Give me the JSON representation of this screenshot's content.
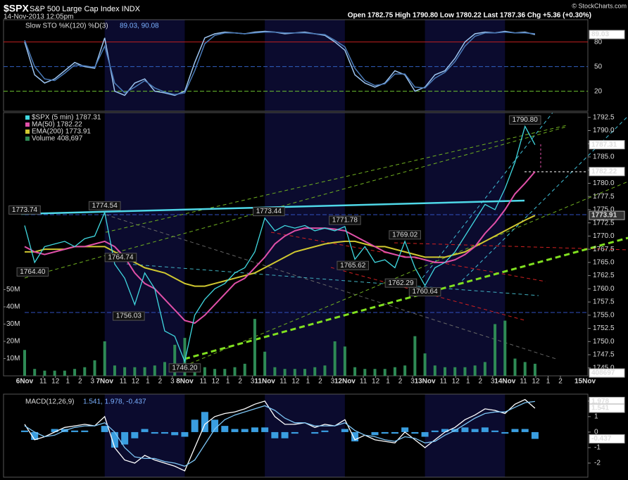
{
  "header": {
    "symbol": "$SPX",
    "name": "S&P 500 Large Cap Index INDX",
    "date": "14-Nov-2013 12:05pm",
    "quote": "Open 1782.75  High 1790.80  Low 1780.22  Last 1787.36  Chg +5.36 (+0.30%)",
    "credit": "© StockCharts.com"
  },
  "chart_data": {
    "type": "line",
    "x": [
      0,
      0.125,
      0.25,
      0.375,
      0.5,
      0.625,
      0.75,
      0.875,
      1,
      1.125,
      1.25,
      1.375,
      1.5,
      1.625,
      1.75,
      1.875,
      2,
      2.125,
      2.25,
      2.375,
      2.5,
      2.625,
      2.75,
      2.875,
      3,
      3.125,
      3.25,
      3.375,
      3.5,
      3.625,
      3.75,
      3.875,
      4,
      4.125,
      4.25,
      4.375,
      4.5,
      4.625,
      4.75,
      4.875,
      5,
      5.125,
      5.25,
      5.375,
      5.5,
      5.625,
      5.75,
      5.875,
      6,
      6.125,
      6.25,
      6.375
    ],
    "xlim": [
      0,
      7
    ],
    "days": [
      {
        "date": "6Nov",
        "hours": [
          11,
          12,
          1,
          2,
          3
        ]
      },
      {
        "date": "7Nov",
        "hours": [
          11,
          12,
          1,
          2,
          3
        ]
      },
      {
        "date": "8Nov",
        "hours": [
          11,
          12,
          1,
          2,
          3
        ]
      },
      {
        "date": "11Nov",
        "hours": [
          11,
          12,
          1,
          2,
          3
        ]
      },
      {
        "date": "12Nov",
        "hours": [
          11,
          12,
          1,
          2,
          3
        ]
      },
      {
        "date": "13Nov",
        "hours": [
          11,
          12,
          1,
          2,
          3
        ]
      },
      {
        "date": "14Nov",
        "hours": [
          11,
          12,
          1,
          2
        ]
      },
      {
        "date": "15Nov",
        "hours": []
      }
    ],
    "sto": {
      "legend": "Slow STO %K(120) %D(3)",
      "legend_values": "89.03, 90.08",
      "ylim": [
        -4.3,
        107.1
      ],
      "yticks": [
        20,
        50,
        80
      ],
      "line_colors": [
        "#6cc030",
        "#3060c0",
        "#c02020"
      ],
      "flag": 89.03,
      "series": [
        {
          "color": "#9cc4f0",
          "values": [
            80,
            40,
            30,
            35,
            45,
            55,
            50,
            48,
            85,
            20,
            15,
            30,
            35,
            20,
            18,
            15,
            20,
            55,
            85,
            90,
            92,
            91,
            90,
            92,
            93,
            92,
            90,
            91,
            92,
            90,
            88,
            80,
            70,
            40,
            30,
            25,
            30,
            45,
            40,
            20,
            25,
            40,
            45,
            60,
            80,
            90,
            92,
            91,
            93,
            91,
            92,
            89.03
          ]
        },
        {
          "color": "#4a7ab8",
          "values": [
            82,
            50,
            35,
            33,
            42,
            52,
            51,
            49,
            75,
            30,
            18,
            25,
            33,
            24,
            19,
            16,
            18,
            45,
            78,
            88,
            91,
            91,
            90,
            91,
            92,
            92,
            91,
            91,
            91,
            90,
            89,
            82,
            74,
            48,
            33,
            27,
            29,
            41,
            41,
            25,
            24,
            36,
            43,
            56,
            75,
            87,
            91,
            91,
            92,
            91,
            91,
            90.08
          ]
        }
      ]
    },
    "price": {
      "legend": [
        {
          "text": "$SPX (5 min) 1787.31",
          "color": "#40d8e0"
        },
        {
          "text": "MA(50) 1782.22",
          "color": "#e050a8"
        },
        {
          "text": "EMA(200) 1773.91",
          "color": "#d0c830"
        },
        {
          "text": "Volume 408,697",
          "color": "#2e8a55"
        }
      ],
      "ylim": [
        1743.5,
        1793.4
      ],
      "yticks": [
        {
          "value": 1745,
          "label": "1745.0"
        },
        {
          "value": 1747.5,
          "label": "1747.5"
        },
        {
          "value": 1750,
          "label": "1750.0"
        },
        {
          "value": 1752.5,
          "label": "1752.5"
        },
        {
          "value": 1755,
          "label": "1755.0"
        },
        {
          "value": 1757.5,
          "label": "1757.5"
        },
        {
          "value": 1760,
          "label": "1760.0"
        },
        {
          "value": 1762.5,
          "label": "1762.5"
        },
        {
          "value": 1765,
          "label": "1765.0"
        },
        {
          "value": 1767.5,
          "label": "1767.5"
        },
        {
          "value": 1770,
          "label": "1770.0"
        },
        {
          "value": 1772.5,
          "label": "1772.5"
        },
        {
          "value": 1775,
          "label": "1775.0"
        },
        {
          "value": 1777.5,
          "label": "1777.5"
        },
        {
          "value": 1780,
          "label": "1780.0"
        },
        {
          "value": 1782.5,
          "label": "1782.5"
        },
        {
          "value": 1785,
          "label": "1785.0"
        },
        {
          "value": 1787.5,
          "label": "1787.5"
        },
        {
          "value": 1790,
          "label": "1790.0"
        },
        {
          "value": 1792.5,
          "label": "1792.5"
        }
      ],
      "series": [
        {
          "color": "#40d8e0",
          "values": [
            1772,
            1765,
            1768,
            1768.5,
            1769,
            1768,
            1769.5,
            1770,
            1774.5,
            1764.7,
            1762,
            1757,
            1763,
            1760,
            1752,
            1751,
            1746.2,
            1755,
            1758,
            1760,
            1761,
            1763,
            1764,
            1767,
            1773.4,
            1771,
            1772,
            1771.5,
            1772,
            1771,
            1771.5,
            1771,
            1771.8,
            1765.6,
            1768,
            1765,
            1765.5,
            1764,
            1769,
            1764,
            1760.6,
            1764,
            1765,
            1767,
            1770,
            1773,
            1776,
            1775,
            1779,
            1784,
            1790.8,
            1787.3
          ]
        },
        {
          "color": "#e050a8",
          "values": [
            1768,
            1767,
            1766.5,
            1767,
            1767.5,
            1768,
            1768,
            1768.5,
            1769,
            1768,
            1766,
            1763,
            1761,
            1760,
            1758,
            1756,
            1754,
            1753.5,
            1755,
            1757,
            1759,
            1761,
            1762,
            1764,
            1766,
            1768.5,
            1770,
            1771,
            1771.5,
            1771.5,
            1771.5,
            1771.3,
            1771,
            1770,
            1769,
            1768,
            1767,
            1766.5,
            1766,
            1766,
            1765.5,
            1765,
            1765,
            1765.5,
            1766.5,
            1768,
            1770.5,
            1772.5,
            1775,
            1778,
            1780,
            1782.2
          ]
        },
        {
          "color": "#d0c830",
          "values": [
            1767,
            1767,
            1767.5,
            1767.5,
            1767.5,
            1768,
            1768,
            1768,
            1768,
            1767,
            1766,
            1765,
            1764,
            1763.5,
            1763,
            1762,
            1761,
            1760.5,
            1760.5,
            1761,
            1761.5,
            1762,
            1762.5,
            1763,
            1764,
            1765,
            1766,
            1767,
            1767.5,
            1768,
            1768.5,
            1768.8,
            1769,
            1769,
            1768.5,
            1768,
            1768,
            1767.5,
            1767,
            1766.5,
            1766,
            1766,
            1766,
            1766.5,
            1767,
            1768,
            1769,
            1770,
            1771,
            1772,
            1773,
            1773.9
          ]
        }
      ],
      "flags": [
        {
          "value": 1787.31,
          "bg": "#ffffff",
          "fg": "#000000"
        },
        {
          "value": 1782.22,
          "bg": "#ffffff",
          "fg": "#000000"
        },
        {
          "value": 1773.91,
          "bg": "#333333",
          "fg": "#f0f0a0"
        }
      ],
      "annotations": [
        {
          "x": 0,
          "value": 1773.74,
          "label": "1773.74",
          "side": "above"
        },
        {
          "x": 1,
          "value": 1774.54,
          "label": "1774.54",
          "side": "above"
        },
        {
          "x": 0.1,
          "value": 1764.4,
          "label": "1764.40",
          "side": "below"
        },
        {
          "x": 1.2,
          "value": 1764.74,
          "label": "1764.74",
          "side": "above"
        },
        {
          "x": 1.3,
          "value": 1756.03,
          "label": "1756.03",
          "side": "below"
        },
        {
          "x": 2,
          "value": 1746.2,
          "label": "1746.20",
          "side": "below"
        },
        {
          "x": 3.05,
          "value": 1773.44,
          "label": "1773.44",
          "side": "above"
        },
        {
          "x": 4,
          "value": 1771.78,
          "label": "1771.78",
          "side": "above"
        },
        {
          "x": 4.1,
          "value": 1765.62,
          "label": "1765.62",
          "side": "below"
        },
        {
          "x": 4.75,
          "value": 1769.02,
          "label": "1769.02",
          "side": "above"
        },
        {
          "x": 4.7,
          "value": 1762.29,
          "label": "1762.29",
          "side": "below"
        },
        {
          "x": 5,
          "value": 1760.64,
          "label": "1760.64",
          "side": "below"
        },
        {
          "x": 6.25,
          "value": 1790.8,
          "label": "1790.80",
          "side": "above"
        }
      ],
      "volume": {
        "color": "#2e8a55",
        "ylim": [
          0,
          152.6
        ],
        "yticks": [
          {
            "value": 10,
            "label": "10M"
          },
          {
            "value": 20,
            "label": "20M"
          },
          {
            "value": 30,
            "label": "30M"
          },
          {
            "value": 40,
            "label": "40M"
          },
          {
            "value": 50,
            "label": "50M"
          }
        ],
        "flag": {
          "value": 0.408697,
          "label": "408697"
        },
        "values": [
          15,
          4,
          3,
          3,
          3,
          4,
          5,
          9,
          20,
          6,
          5,
          5,
          5,
          6,
          8,
          18,
          22,
          6,
          5,
          4,
          4,
          5,
          7,
          33,
          14,
          5,
          4,
          4,
          4,
          5,
          6,
          20,
          17,
          5,
          4,
          4,
          4,
          5,
          6,
          23,
          13,
          6,
          5,
          5,
          5,
          6,
          8,
          30,
          32,
          10,
          8,
          7
        ]
      }
    },
    "macd": {
      "legend": "MACD(12,26,9)",
      "legend_values": "1.541, 1.978, -0.437",
      "ylim": [
        -2.91,
        2.45
      ],
      "yticks": [
        -2,
        -1,
        0,
        1,
        2
      ],
      "flags": [
        1.978,
        1.541,
        -0.437
      ],
      "histogram": {
        "color": "#3a9ee0",
        "values": [
          0.1,
          -0.5,
          0,
          0.2,
          0.2,
          0.1,
          0.1,
          0,
          0.4,
          -1,
          -0.8,
          -0.4,
          0.2,
          -0.1,
          -0.1,
          -0.2,
          -0.3,
          0.8,
          1.3,
          0.8,
          0.4,
          0.2,
          0.2,
          0.3,
          0.3,
          -0.4,
          -0.4,
          -0.1,
          0,
          -0.1,
          0.1,
          0,
          0.2,
          -0.6,
          0,
          -0.2,
          -0.1,
          -0.1,
          0.3,
          -0.1,
          -0.3,
          0.1,
          0.2,
          0.2,
          0.3,
          0.2,
          0.3,
          0.1,
          -0.1,
          0.2,
          0.2,
          -0.437
        ]
      },
      "series": [
        {
          "color": "#ffffff",
          "values": [
            0.5,
            -0.5,
            -0.3,
            0,
            0.3,
            0.4,
            0.5,
            0.4,
            1,
            -1,
            -1.8,
            -2,
            -1.5,
            -1.8,
            -2,
            -2.2,
            -2.5,
            -1,
            0.5,
            1,
            1.2,
            1.3,
            1.5,
            1.8,
            2,
            1,
            0.5,
            0.5,
            0.6,
            0.3,
            0.5,
            0.4,
            0.8,
            -0.5,
            -0.2,
            -0.5,
            -0.6,
            -0.7,
            0,
            -0.5,
            -1,
            -0.5,
            0,
            0.3,
            0.8,
            1.1,
            1.5,
            1.4,
            1.2,
            1.8,
            2.1,
            1.541
          ]
        },
        {
          "color": "#7cc4f4",
          "values": [
            0.4,
            0,
            -0.3,
            -0.2,
            0.1,
            0.3,
            0.4,
            0.4,
            0.6,
            0,
            -1,
            -1.6,
            -1.7,
            -1.7,
            -1.9,
            -2,
            -2.2,
            -1.8,
            -0.8,
            0.2,
            0.8,
            1.1,
            1.3,
            1.5,
            1.7,
            1.4,
            0.9,
            0.6,
            0.6,
            0.4,
            0.4,
            0.4,
            0.6,
            0.1,
            -0.2,
            -0.3,
            -0.5,
            -0.6,
            -0.3,
            -0.4,
            -0.7,
            -0.6,
            -0.2,
            0.1,
            0.5,
            0.9,
            1.2,
            1.3,
            1.3,
            1.6,
            1.9,
            1.978
          ]
        }
      ]
    }
  }
}
